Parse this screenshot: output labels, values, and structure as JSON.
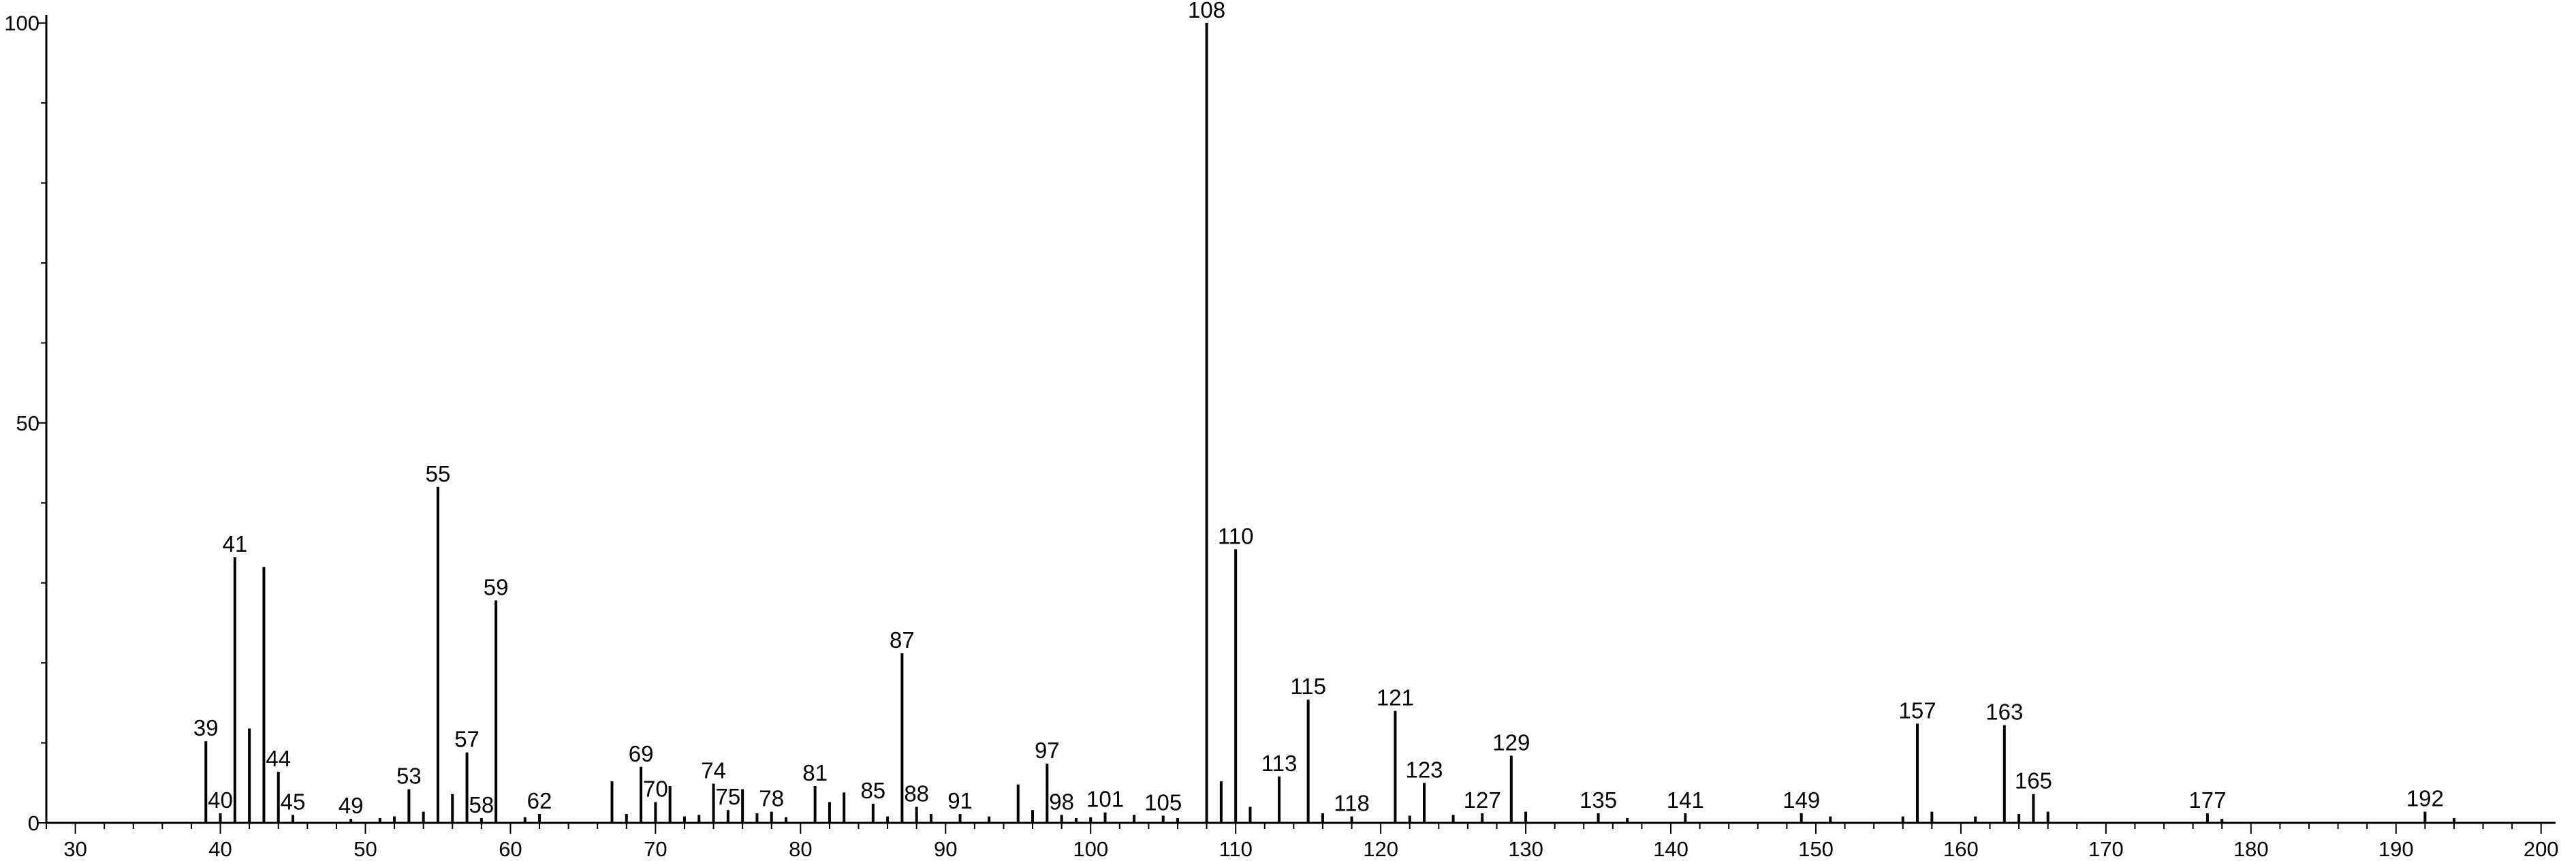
{
  "chart_data": {
    "type": "bar",
    "title": "",
    "xlabel": "",
    "ylabel": "",
    "xlim": [
      28,
      201
    ],
    "ylim": [
      0,
      101
    ],
    "xticks": [
      30,
      40,
      50,
      60,
      70,
      80,
      90,
      100,
      110,
      120,
      130,
      140,
      150,
      160,
      170,
      180,
      190,
      200
    ],
    "yticks": [
      50,
      100
    ],
    "grid": false,
    "colors": {
      "bar": "#000000",
      "axis": "#000000",
      "background": "#ffffff"
    },
    "peaks": [
      {
        "mz": 39,
        "intensity": 10.2,
        "label": "39"
      },
      {
        "mz": 40,
        "intensity": 1.2,
        "label": "40"
      },
      {
        "mz": 41,
        "intensity": 33.2,
        "label": "41"
      },
      {
        "mz": 42,
        "intensity": 11.8
      },
      {
        "mz": 43,
        "intensity": 32.0
      },
      {
        "mz": 44,
        "intensity": 6.4,
        "label": "44"
      },
      {
        "mz": 45,
        "intensity": 1.0,
        "label": "45"
      },
      {
        "mz": 49,
        "intensity": 0.5,
        "label": "49"
      },
      {
        "mz": 51,
        "intensity": 0.6
      },
      {
        "mz": 52,
        "intensity": 0.8
      },
      {
        "mz": 53,
        "intensity": 4.2,
        "label": "53"
      },
      {
        "mz": 54,
        "intensity": 1.4
      },
      {
        "mz": 55,
        "intensity": 42.0,
        "label": "55"
      },
      {
        "mz": 56,
        "intensity": 3.6
      },
      {
        "mz": 57,
        "intensity": 8.8,
        "label": "57"
      },
      {
        "mz": 58,
        "intensity": 0.6,
        "label": "58"
      },
      {
        "mz": 59,
        "intensity": 27.8,
        "label": "59"
      },
      {
        "mz": 61,
        "intensity": 0.7
      },
      {
        "mz": 62,
        "intensity": 1.1,
        "label": "62"
      },
      {
        "mz": 67,
        "intensity": 5.2
      },
      {
        "mz": 68,
        "intensity": 1.1
      },
      {
        "mz": 69,
        "intensity": 7.0,
        "label": "69"
      },
      {
        "mz": 70,
        "intensity": 2.6,
        "label": "70"
      },
      {
        "mz": 71,
        "intensity": 4.6
      },
      {
        "mz": 72,
        "intensity": 0.8
      },
      {
        "mz": 73,
        "intensity": 1.0
      },
      {
        "mz": 74,
        "intensity": 4.9,
        "label": "74"
      },
      {
        "mz": 75,
        "intensity": 1.6,
        "label": "75"
      },
      {
        "mz": 76,
        "intensity": 4.2
      },
      {
        "mz": 77,
        "intensity": 1.2
      },
      {
        "mz": 78,
        "intensity": 1.4,
        "label": "78"
      },
      {
        "mz": 79,
        "intensity": 0.7
      },
      {
        "mz": 81,
        "intensity": 4.6,
        "label": "81"
      },
      {
        "mz": 82,
        "intensity": 2.6
      },
      {
        "mz": 83,
        "intensity": 3.8
      },
      {
        "mz": 85,
        "intensity": 2.4,
        "label": "85"
      },
      {
        "mz": 86,
        "intensity": 0.8
      },
      {
        "mz": 87,
        "intensity": 21.2,
        "label": "87"
      },
      {
        "mz": 88,
        "intensity": 2.0,
        "label": "88"
      },
      {
        "mz": 89,
        "intensity": 1.1
      },
      {
        "mz": 91,
        "intensity": 1.1,
        "label": "91"
      },
      {
        "mz": 93,
        "intensity": 0.8
      },
      {
        "mz": 95,
        "intensity": 4.8
      },
      {
        "mz": 96,
        "intensity": 1.6
      },
      {
        "mz": 97,
        "intensity": 7.4,
        "label": "97"
      },
      {
        "mz": 98,
        "intensity": 1.0,
        "label": "98"
      },
      {
        "mz": 99,
        "intensity": 0.6
      },
      {
        "mz": 100,
        "intensity": 0.7
      },
      {
        "mz": 101,
        "intensity": 1.3,
        "label": "101"
      },
      {
        "mz": 103,
        "intensity": 1.0
      },
      {
        "mz": 105,
        "intensity": 0.9,
        "label": "105"
      },
      {
        "mz": 106,
        "intensity": 0.6
      },
      {
        "mz": 108,
        "intensity": 100.0,
        "label": "108"
      },
      {
        "mz": 109,
        "intensity": 5.2
      },
      {
        "mz": 110,
        "intensity": 34.2,
        "label": "110"
      },
      {
        "mz": 111,
        "intensity": 2.0
      },
      {
        "mz": 113,
        "intensity": 5.8,
        "label": "113"
      },
      {
        "mz": 115,
        "intensity": 15.4,
        "label": "115"
      },
      {
        "mz": 116,
        "intensity": 1.2
      },
      {
        "mz": 118,
        "intensity": 0.8,
        "label": "118"
      },
      {
        "mz": 121,
        "intensity": 14.0,
        "label": "121"
      },
      {
        "mz": 122,
        "intensity": 0.9
      },
      {
        "mz": 123,
        "intensity": 5.0,
        "label": "123"
      },
      {
        "mz": 125,
        "intensity": 1.0
      },
      {
        "mz": 127,
        "intensity": 1.2,
        "label": "127"
      },
      {
        "mz": 129,
        "intensity": 8.4,
        "label": "129"
      },
      {
        "mz": 130,
        "intensity": 1.4
      },
      {
        "mz": 135,
        "intensity": 1.2,
        "label": "135"
      },
      {
        "mz": 137,
        "intensity": 0.6
      },
      {
        "mz": 141,
        "intensity": 1.2,
        "label": "141"
      },
      {
        "mz": 149,
        "intensity": 1.2,
        "label": "149"
      },
      {
        "mz": 151,
        "intensity": 0.8
      },
      {
        "mz": 156,
        "intensity": 0.8
      },
      {
        "mz": 157,
        "intensity": 12.4,
        "label": "157"
      },
      {
        "mz": 158,
        "intensity": 1.4
      },
      {
        "mz": 161,
        "intensity": 0.8
      },
      {
        "mz": 163,
        "intensity": 12.2,
        "label": "163"
      },
      {
        "mz": 164,
        "intensity": 1.1
      },
      {
        "mz": 165,
        "intensity": 3.6,
        "label": "165"
      },
      {
        "mz": 166,
        "intensity": 1.4
      },
      {
        "mz": 177,
        "intensity": 1.2,
        "label": "177"
      },
      {
        "mz": 178,
        "intensity": 0.5
      },
      {
        "mz": 192,
        "intensity": 1.4,
        "label": "192"
      },
      {
        "mz": 194,
        "intensity": 0.6
      }
    ]
  }
}
